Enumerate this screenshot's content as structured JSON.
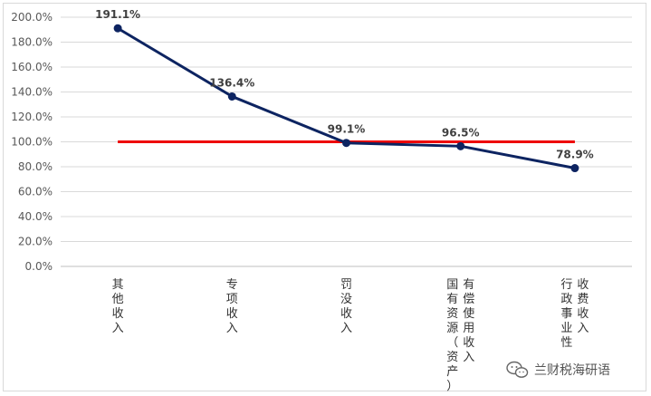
{
  "chart_data": {
    "type": "line",
    "title": "",
    "xlabel": "",
    "ylabel": "",
    "ylim": [
      0,
      200
    ],
    "y_tick_step": 20,
    "y_tick_format": "percent_1dp",
    "grid": true,
    "legend": "none",
    "categories": [
      [
        "其他收入"
      ],
      [
        "专项收入"
      ],
      [
        "罚没收入"
      ],
      [
        "国有资源（资产）",
        "有偿使用收入"
      ],
      [
        "行政事业性",
        "收费收入"
      ]
    ],
    "series": [
      {
        "values": [
          191.1,
          136.4,
          99.1,
          96.5,
          78.9
        ],
        "labels": [
          "191.1%",
          "136.4%",
          "99.1%",
          "96.5%",
          "78.9%"
        ],
        "color": "#0d2461"
      }
    ],
    "reference_line": {
      "value": 100,
      "color": "#ee0000"
    }
  },
  "watermark": {
    "text": "兰财税海研语",
    "icon": "wechat-icon"
  }
}
